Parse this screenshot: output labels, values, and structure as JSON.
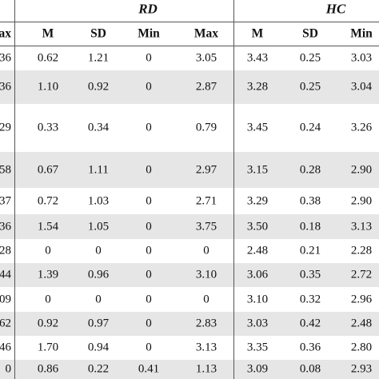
{
  "table": {
    "groups": [
      "RD",
      "HC"
    ],
    "columns": [
      "ax",
      "M",
      "SD",
      "Min",
      "Max",
      "M",
      "SD",
      "Min"
    ],
    "rows": [
      [
        "36",
        "0.62",
        "1.21",
        "0",
        "3.05",
        "3.43",
        "0.25",
        "3.03"
      ],
      [
        "36",
        "1.10",
        "0.92",
        "0",
        "2.87",
        "3.28",
        "0.25",
        "3.04"
      ],
      [
        "29",
        "0.33",
        "0.34",
        "0",
        "0.79",
        "3.45",
        "0.24",
        "3.26"
      ],
      [
        "58",
        "0.67",
        "1.11",
        "0",
        "2.97",
        "3.15",
        "0.28",
        "2.90"
      ],
      [
        "37",
        "0.72",
        "1.03",
        "0",
        "2.71",
        "3.29",
        "0.38",
        "2.90"
      ],
      [
        "36",
        "1.54",
        "1.05",
        "0",
        "3.75",
        "3.50",
        "0.18",
        "3.13"
      ],
      [
        "28",
        "0",
        "0",
        "0",
        "0",
        "2.48",
        "0.21",
        "2.28"
      ],
      [
        "44",
        "1.39",
        "0.96",
        "0",
        "3.10",
        "3.06",
        "0.35",
        "2.72"
      ],
      [
        "09",
        "0",
        "0",
        "0",
        "0",
        "3.10",
        "0.32",
        "2.96"
      ],
      [
        "62",
        "0.92",
        "0.97",
        "0",
        "2.83",
        "3.03",
        "0.42",
        "2.48"
      ],
      [
        "46",
        "1.70",
        "0.94",
        "0",
        "3.13",
        "3.35",
        "0.36",
        "2.80"
      ],
      [
        "0",
        "0.86",
        "0.22",
        "0.41",
        "1.13",
        "3.09",
        "0.08",
        "2.93"
      ]
    ]
  }
}
